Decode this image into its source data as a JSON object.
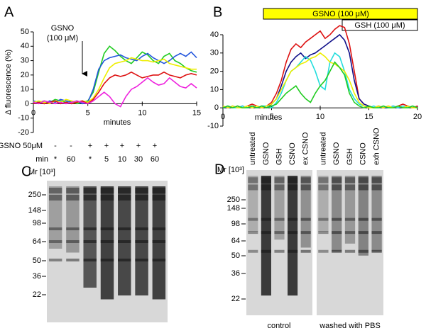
{
  "chart_data": [
    {
      "type": "line",
      "label": "A",
      "ylabel": "Δ fluorescence (%)",
      "xlabel": "minutes",
      "annotation": "GSNO\n(100 μM)",
      "x": [
        0,
        0.5,
        1,
        1.5,
        2,
        2.5,
        3,
        3.5,
        4,
        4.5,
        5,
        5.5,
        6,
        6.5,
        7,
        7.5,
        8,
        8.5,
        9,
        9.5,
        10,
        10.5,
        11,
        11.5,
        12,
        12.5,
        13,
        13.5,
        14,
        14.5,
        15
      ],
      "xlim": [
        0,
        15
      ],
      "xticks": [
        0,
        5,
        10,
        15
      ],
      "ylim": [
        -20,
        50
      ],
      "yticks": [
        -20,
        -10,
        0,
        10,
        20,
        30,
        40,
        50
      ],
      "series": [
        {
          "color": "#22cc22",
          "values": [
            0,
            1,
            2,
            1,
            3,
            2,
            1,
            2,
            0,
            1,
            2,
            8,
            22,
            35,
            40,
            37,
            33,
            30,
            28,
            32,
            36,
            34,
            30,
            28,
            33,
            35,
            30,
            28,
            25,
            23,
            22
          ]
        },
        {
          "color": "#2255dd",
          "values": [
            2,
            1,
            0,
            2,
            1,
            3,
            2,
            1,
            2,
            0,
            1,
            10,
            24,
            30,
            32,
            33,
            34,
            32,
            31,
            30,
            33,
            35,
            32,
            30,
            28,
            30,
            33,
            35,
            33,
            36,
            32
          ]
        },
        {
          "color": "#eeee00",
          "values": [
            1,
            2,
            1,
            0,
            2,
            1,
            3,
            2,
            1,
            2,
            1,
            4,
            10,
            18,
            25,
            28,
            29,
            30,
            32,
            31,
            30,
            30,
            29,
            30,
            31,
            28,
            27,
            26,
            25,
            24,
            24
          ]
        },
        {
          "color": "#dd1111",
          "values": [
            0,
            1,
            0,
            1,
            2,
            0,
            1,
            0,
            1,
            2,
            0,
            3,
            8,
            14,
            18,
            20,
            19,
            20,
            22,
            20,
            18,
            19,
            20,
            20,
            22,
            20,
            19,
            18,
            20,
            21,
            20
          ]
        },
        {
          "color": "#ee22dd",
          "values": [
            1,
            0,
            2,
            1,
            0,
            1,
            0,
            1,
            2,
            1,
            0,
            2,
            5,
            8,
            5,
            0,
            -2,
            5,
            10,
            12,
            15,
            18,
            15,
            13,
            14,
            18,
            15,
            12,
            11,
            14,
            11
          ]
        }
      ]
    },
    {
      "type": "line",
      "label": "B",
      "xlabel": "minutes",
      "bar_labels": [
        "GSNO (100 μM)",
        "GSH (100 μM)"
      ],
      "x": [
        0,
        0.5,
        1,
        1.5,
        2,
        2.5,
        3,
        3.5,
        4,
        4.5,
        5,
        5.5,
        6,
        6.5,
        7,
        7.5,
        8,
        8.5,
        9,
        9.5,
        10,
        10.5,
        11,
        11.5,
        12,
        12.5,
        13,
        13.5,
        14,
        14.5,
        15,
        15.5,
        16,
        16.5,
        17,
        17.5,
        18,
        18.5,
        19,
        19.5,
        20
      ],
      "xlim": [
        0,
        20
      ],
      "xticks": [
        0,
        5,
        10,
        15,
        20
      ],
      "ylim": [
        -10,
        40
      ],
      "yticks": [
        -10,
        0,
        10,
        20,
        30,
        40
      ],
      "series": [
        {
          "color": "#dd1111",
          "values": [
            0,
            1,
            0,
            1,
            0,
            1,
            2,
            1,
            0,
            1,
            3,
            8,
            15,
            25,
            32,
            35,
            33,
            36,
            38,
            40,
            42,
            38,
            40,
            43,
            45,
            44,
            35,
            20,
            5,
            2,
            1,
            0,
            1,
            0,
            1,
            0,
            1,
            2,
            1,
            0,
            1
          ]
        },
        {
          "color": "#11118a",
          "values": [
            0,
            0,
            1,
            0,
            1,
            0,
            1,
            0,
            1,
            0,
            2,
            5,
            12,
            20,
            25,
            28,
            30,
            27,
            29,
            30,
            32,
            34,
            36,
            38,
            40,
            37,
            30,
            15,
            5,
            2,
            1,
            0,
            1,
            0,
            0,
            1,
            0,
            0,
            1,
            0,
            0
          ]
        },
        {
          "color": "#22dddd",
          "values": [
            0,
            1,
            0,
            0,
            1,
            0,
            1,
            0,
            1,
            1,
            0,
            3,
            8,
            15,
            20,
            22,
            25,
            28,
            26,
            20,
            12,
            10,
            25,
            30,
            28,
            20,
            10,
            5,
            2,
            1,
            0,
            1,
            0,
            1,
            0,
            1,
            0,
            1,
            0,
            1,
            0
          ]
        },
        {
          "color": "#eeee00",
          "values": [
            1,
            0,
            1,
            0,
            0,
            1,
            0,
            1,
            0,
            1,
            2,
            5,
            10,
            15,
            20,
            22,
            24,
            25,
            27,
            28,
            30,
            28,
            25,
            24,
            22,
            20,
            15,
            8,
            3,
            1,
            0,
            0,
            1,
            0,
            1,
            0,
            1,
            0,
            1,
            0,
            0
          ]
        },
        {
          "color": "#22cc22",
          "values": [
            0,
            1,
            0,
            1,
            0,
            0,
            1,
            0,
            1,
            0,
            1,
            2,
            5,
            8,
            10,
            12,
            8,
            5,
            3,
            8,
            12,
            15,
            20,
            25,
            22,
            18,
            8,
            3,
            1,
            0,
            1,
            0,
            0,
            1,
            0,
            0,
            1,
            0,
            0,
            1,
            0
          ]
        }
      ]
    }
  ],
  "panel_c": {
    "label": "C",
    "treatment": "GSNO 50μM",
    "treatment_row": [
      "-",
      "-",
      "+",
      "+",
      "+",
      "+",
      "+"
    ],
    "time_label": "min",
    "time_row": [
      "*",
      "60",
      "*",
      "5",
      "10",
      "30",
      "60"
    ],
    "mw_label": "Mr [10³]",
    "mw_markers": [
      250,
      148,
      98,
      64,
      50,
      36,
      22
    ]
  },
  "panel_d": {
    "label": "D",
    "mw_label": "Mr [10³]",
    "mw_markers": [
      250,
      148,
      98,
      64,
      50,
      36,
      22
    ],
    "control_lanes": [
      "untreated",
      "GSNO",
      "GSH",
      "CSNO",
      "ex CSNO"
    ],
    "washed_lanes": [
      "untreated",
      "GSNO",
      "GSH",
      "CSNO",
      "exh CSNO"
    ],
    "control_caption": "control",
    "washed_caption": "washed with PBS"
  }
}
